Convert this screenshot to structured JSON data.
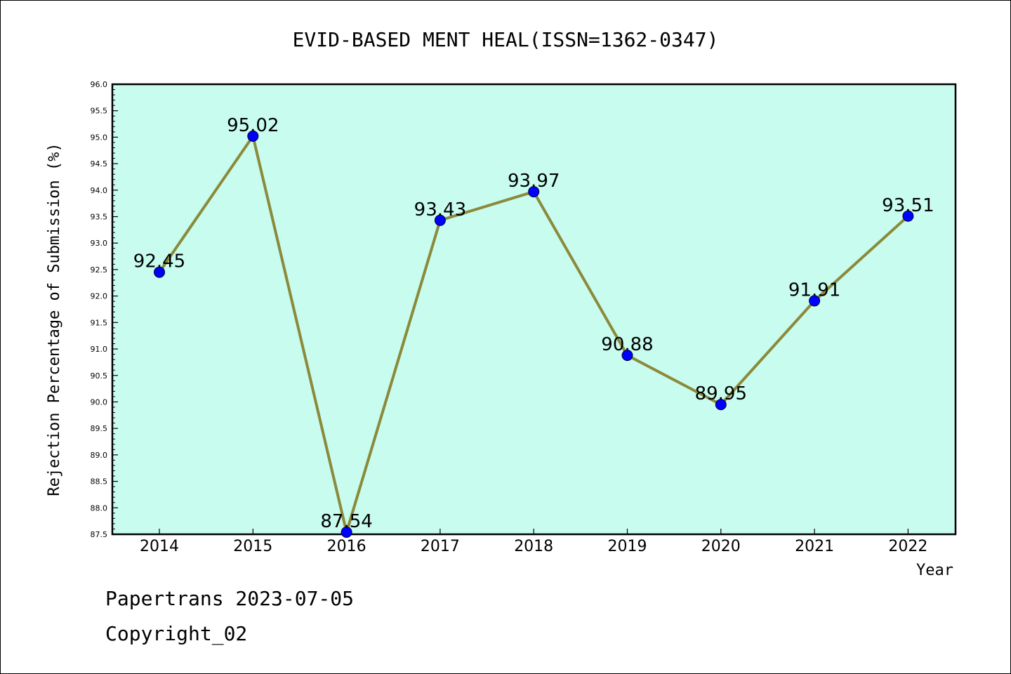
{
  "chart_data": {
    "type": "line",
    "title": "EVID-BASED MENT HEAL(ISSN=1362-0347)",
    "xlabel": "Year",
    "ylabel": "Rejection Percentage of Submission (%)",
    "categories": [
      "2014",
      "2015",
      "2016",
      "2017",
      "2018",
      "2019",
      "2020",
      "2021",
      "2022"
    ],
    "values": [
      92.45,
      95.02,
      87.54,
      93.43,
      93.97,
      90.88,
      89.95,
      91.91,
      93.51
    ],
    "data_labels": [
      "92.45",
      "95.02",
      "87.54",
      "93.43",
      "93.97",
      "90.88",
      "89.95",
      "91.91",
      "93.51"
    ],
    "ylim": [
      87.5,
      96.0
    ],
    "y_ticks": [
      "87.5",
      "88.0",
      "88.5",
      "89.0",
      "89.5",
      "90.0",
      "90.5",
      "91.0",
      "91.5",
      "92.0",
      "92.5",
      "93.0",
      "93.5",
      "94.0",
      "94.5",
      "95.0",
      "95.5",
      "96.0"
    ],
    "grid": false,
    "colors": {
      "plot_background": "#c8fcee",
      "line": "#8b8a3b",
      "marker": "#0000ff"
    }
  },
  "footer": {
    "line1": "Papertrans 2023-07-05",
    "line2": "Copyright_02"
  }
}
